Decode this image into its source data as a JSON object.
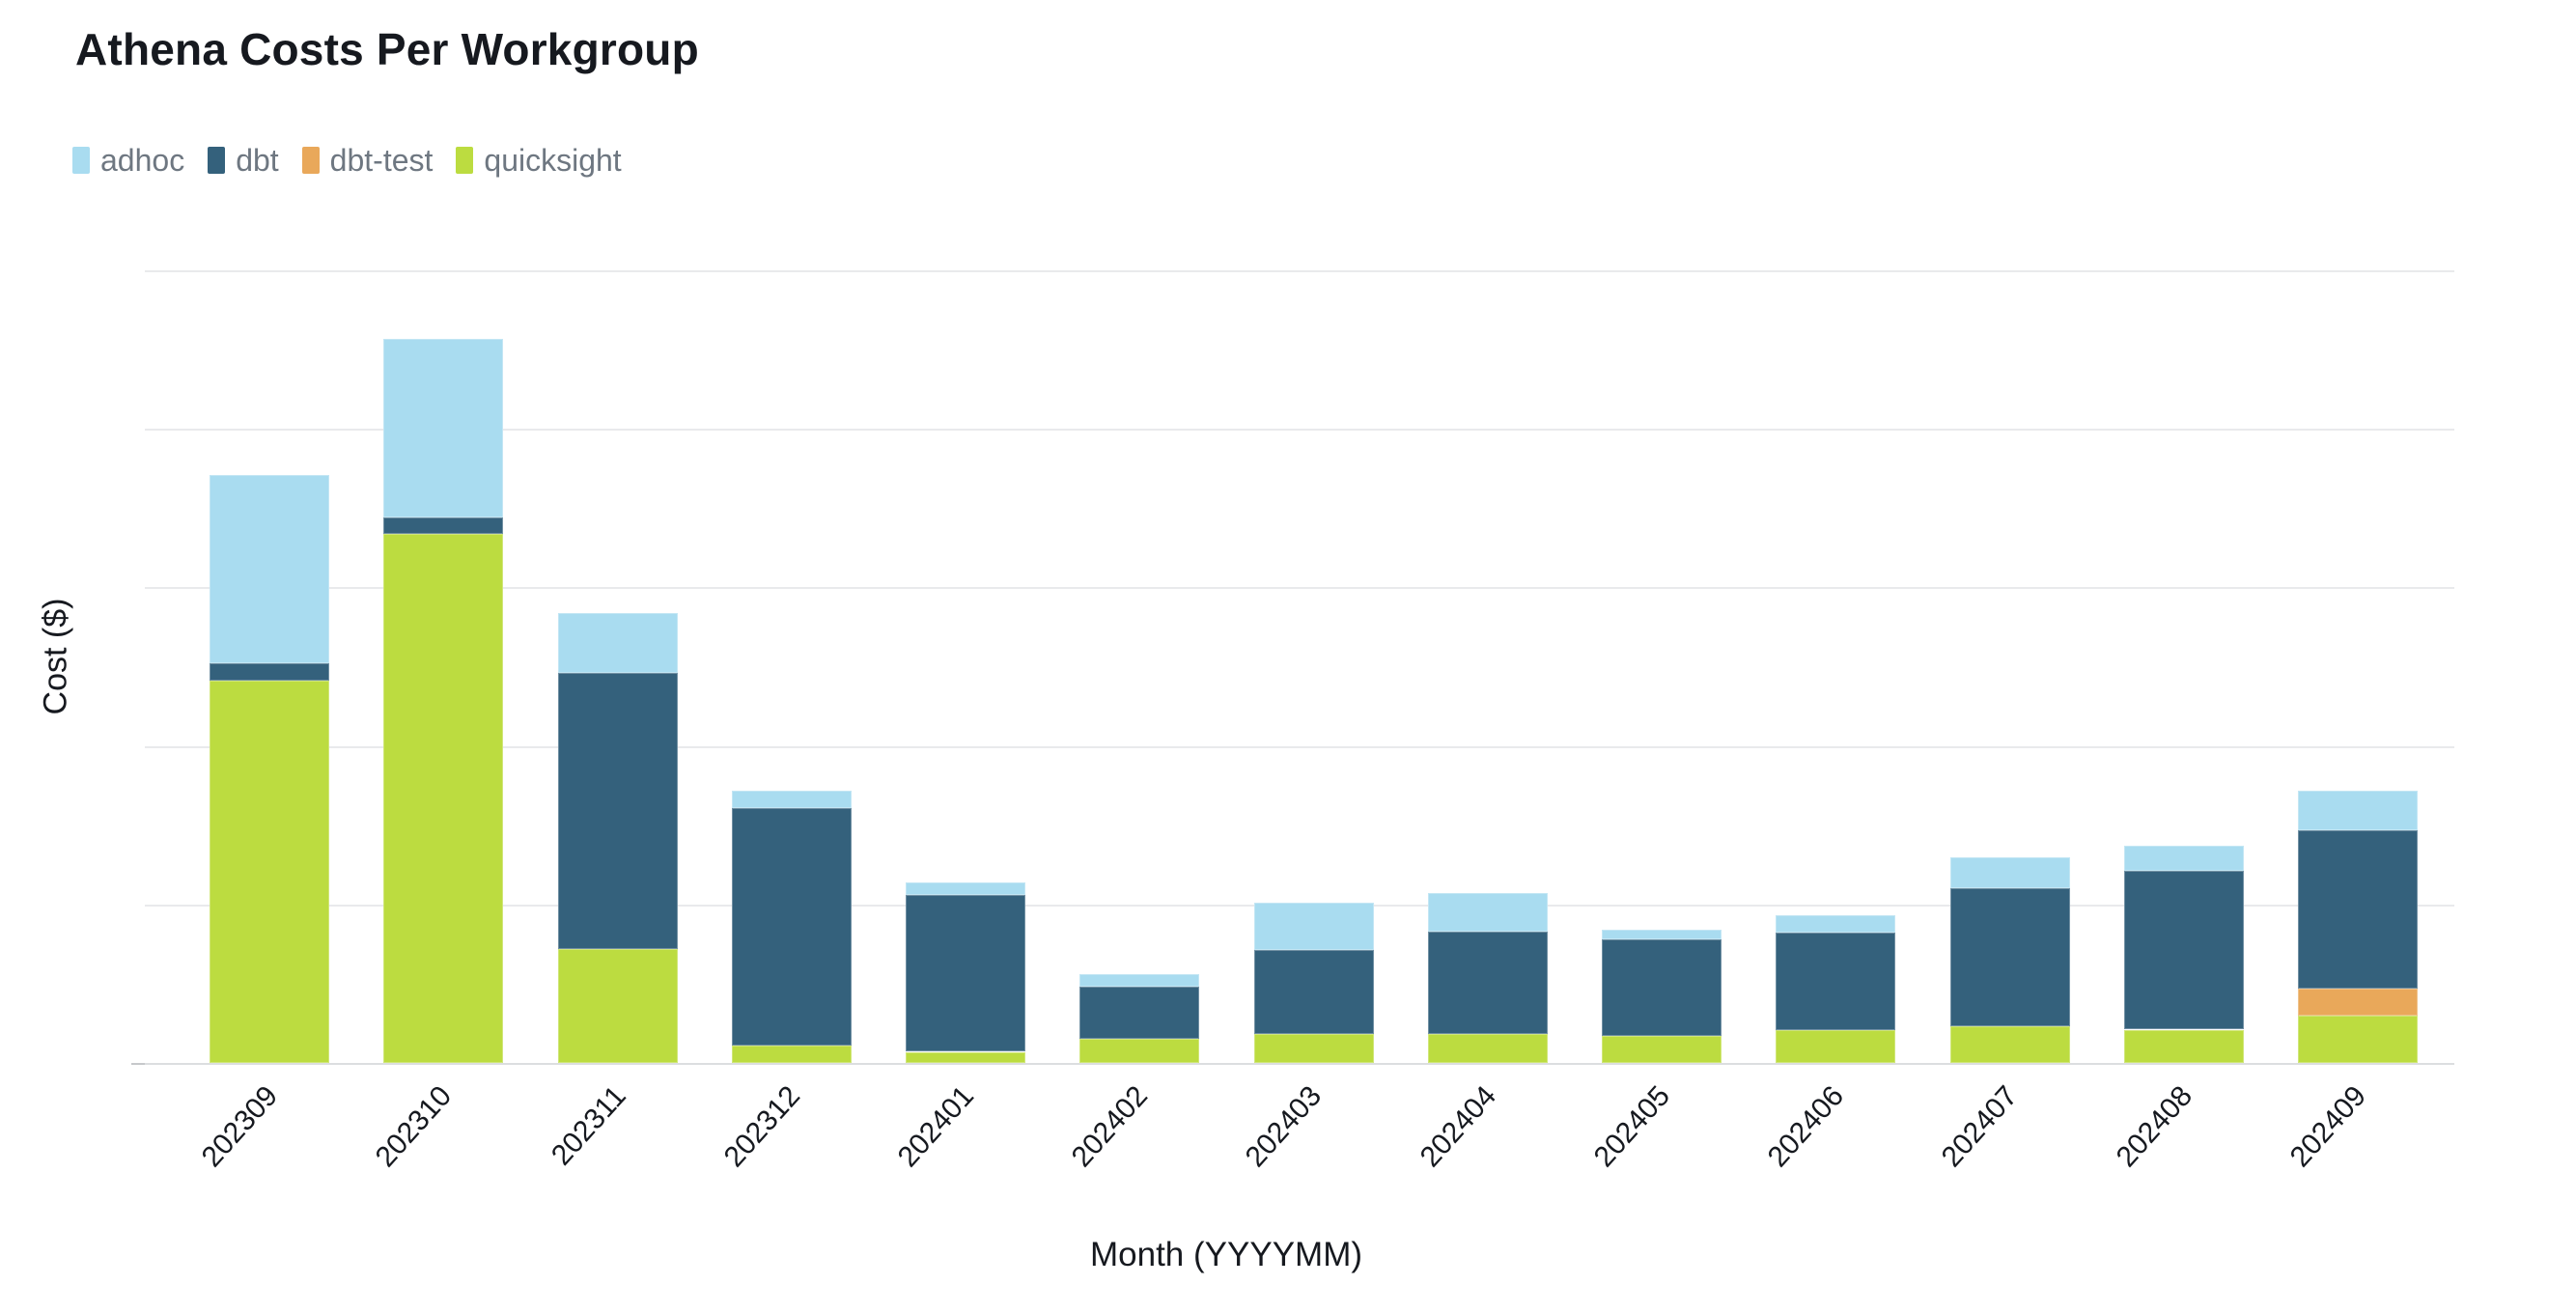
{
  "page": {
    "background": "#ffffff"
  },
  "header": {
    "title": "Athena Costs Per Workgroup"
  },
  "legend": {
    "items": [
      {
        "label": "adhoc",
        "color": "#a9dcf0"
      },
      {
        "label": "dbt",
        "color": "#34617c"
      },
      {
        "label": "dbt-test",
        "color": "#e9a85a"
      },
      {
        "label": "quicksight",
        "color": "#bcdc40"
      }
    ]
  },
  "axes": {
    "x_title": "Month (YYYYMM)",
    "y_title": "Cost ($)"
  },
  "chart_data": {
    "type": "bar",
    "stacked": true,
    "title": "Athena Costs Per Workgroup",
    "xlabel": "Month (YYYYMM)",
    "ylabel": "Cost ($)",
    "categories": [
      "202309",
      "202310",
      "202311",
      "202312",
      "202401",
      "202402",
      "202403",
      "202404",
      "202405",
      "202406",
      "202407",
      "202408",
      "202409"
    ],
    "series": [
      {
        "name": "quicksight",
        "color": "#bcdc40",
        "values": [
          2.41,
          3.34,
          0.72,
          0.11,
          0.07,
          0.15,
          0.18,
          0.18,
          0.17,
          0.21,
          0.23,
          0.21,
          0.3
        ]
      },
      {
        "name": "dbt-test",
        "color": "#e9a85a",
        "values": [
          0,
          0,
          0,
          0,
          0,
          0,
          0,
          0,
          0,
          0,
          0,
          0,
          0.17
        ]
      },
      {
        "name": "dbt",
        "color": "#34617c",
        "values": [
          0.11,
          0.1,
          1.74,
          1.5,
          0.99,
          0.33,
          0.53,
          0.65,
          0.61,
          0.61,
          0.87,
          1.0,
          1.0
        ]
      },
      {
        "name": "adhoc",
        "color": "#a9dcf0",
        "values": [
          1.19,
          1.13,
          0.38,
          0.11,
          0.08,
          0.08,
          0.3,
          0.24,
          0.06,
          0.11,
          0.2,
          0.16,
          0.25
        ]
      }
    ],
    "stack_order_bottom_to_top": [
      "quicksight",
      "dbt-test",
      "dbt",
      "adhoc"
    ],
    "legend_order": [
      "adhoc",
      "dbt",
      "dbt-test",
      "quicksight"
    ],
    "ylim": [
      0,
      5
    ],
    "y_gridline_count": 5,
    "y_axis_tick_labels": [],
    "grid": "horizontal",
    "legend_position": "top-left"
  }
}
